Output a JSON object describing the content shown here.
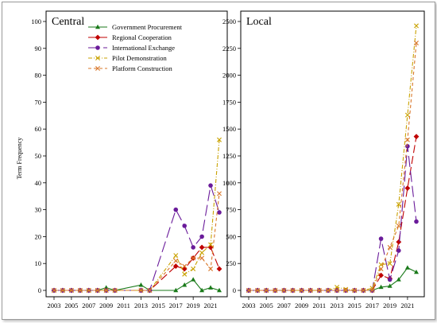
{
  "ylabel": "Term Frequency",
  "legend": [
    {
      "key": "gov",
      "name": "Government Procurement"
    },
    {
      "key": "reg",
      "name": "Regional Cooperation"
    },
    {
      "key": "int",
      "name": "International Exchange"
    },
    {
      "key": "pil",
      "name": "Pilot Demonstration"
    },
    {
      "key": "pla",
      "name": "Platform Construction"
    }
  ],
  "styles": {
    "gov": {
      "color": "#1a7a1a",
      "dash": "",
      "marker": "triangle"
    },
    "reg": {
      "color": "#c00000",
      "dash": "10,4",
      "marker": "diamond"
    },
    "int": {
      "color": "#6a1b9a",
      "dash": "14,5",
      "marker": "circle"
    },
    "pil": {
      "color": "#c9a200",
      "dash": "5,2,1,2",
      "marker": "cross"
    },
    "pla": {
      "color": "#d9772a",
      "dash": "4,3",
      "marker": "cross"
    }
  },
  "chart_data": [
    {
      "type": "line",
      "title": "Central",
      "ylabel": "Term Frequency",
      "xlim": [
        2003,
        2022
      ],
      "ylim": [
        0,
        100
      ],
      "yticks": [
        0,
        10,
        20,
        30,
        40,
        50,
        60,
        70,
        80,
        90,
        100
      ],
      "xticks": [
        2003,
        2005,
        2007,
        2009,
        2011,
        2013,
        2015,
        2017,
        2019,
        2021
      ],
      "legend_position": "top",
      "series": [
        {
          "key": "gov",
          "name": "Government Procurement",
          "x": [
            2003,
            2004,
            2005,
            2006,
            2007,
            2008,
            2009,
            2010,
            2013,
            2014,
            2017,
            2018,
            2019,
            2020,
            2021,
            2022
          ],
          "y": [
            0,
            0,
            0,
            0,
            0,
            0,
            1,
            0,
            2,
            0,
            0,
            2,
            4,
            0,
            1,
            0
          ]
        },
        {
          "key": "reg",
          "name": "Regional Cooperation",
          "x": [
            2003,
            2004,
            2005,
            2006,
            2007,
            2008,
            2009,
            2010,
            2013,
            2014,
            2017,
            2018,
            2019,
            2020,
            2021,
            2022
          ],
          "y": [
            0,
            0,
            0,
            0,
            0,
            0,
            0,
            0,
            0,
            0,
            9,
            8,
            12,
            16,
            16,
            8
          ]
        },
        {
          "key": "int",
          "name": "International Exchange",
          "x": [
            2003,
            2004,
            2005,
            2006,
            2007,
            2008,
            2009,
            2010,
            2013,
            2014,
            2017,
            2018,
            2019,
            2020,
            2021,
            2022
          ],
          "y": [
            0,
            0,
            0,
            0,
            0,
            0,
            0,
            0,
            0,
            0,
            30,
            24,
            16,
            20,
            39,
            29
          ]
        },
        {
          "key": "pil",
          "name": "Pilot Demonstration",
          "x": [
            2003,
            2004,
            2005,
            2006,
            2007,
            2008,
            2009,
            2010,
            2013,
            2014,
            2017,
            2018,
            2019,
            2020,
            2021,
            2022
          ],
          "y": [
            0,
            0,
            0,
            0,
            0,
            0,
            0,
            0,
            0,
            0,
            13,
            6,
            8,
            14,
            17,
            56
          ]
        },
        {
          "key": "pla",
          "name": "Platform Construction",
          "x": [
            2003,
            2004,
            2005,
            2006,
            2007,
            2008,
            2009,
            2010,
            2013,
            2014,
            2017,
            2018,
            2019,
            2020,
            2021,
            2022
          ],
          "y": [
            0,
            0,
            0,
            0,
            0,
            0,
            0,
            0,
            0,
            0,
            11,
            9,
            12,
            12,
            8,
            36
          ]
        }
      ]
    },
    {
      "type": "line",
      "title": "Local",
      "ylabel": "",
      "xlim": [
        2003,
        2022
      ],
      "ylim": [
        0,
        2500
      ],
      "yticks": [
        0,
        250,
        500,
        750,
        1000,
        1250,
        1500,
        1750,
        2000,
        2250,
        2500
      ],
      "xticks": [
        2003,
        2005,
        2007,
        2009,
        2011,
        2013,
        2015,
        2017,
        2019,
        2021
      ],
      "series": [
        {
          "key": "gov",
          "name": "Government Procurement",
          "x": [
            2003,
            2004,
            2005,
            2006,
            2007,
            2008,
            2009,
            2010,
            2011,
            2012,
            2013,
            2014,
            2015,
            2016,
            2017,
            2018,
            2019,
            2020,
            2021,
            2022
          ],
          "y": [
            0,
            0,
            0,
            0,
            0,
            0,
            0,
            0,
            0,
            0,
            0,
            0,
            0,
            0,
            0,
            30,
            40,
            100,
            210,
            170
          ]
        },
        {
          "key": "reg",
          "name": "Regional Cooperation",
          "x": [
            2003,
            2004,
            2005,
            2006,
            2007,
            2008,
            2009,
            2010,
            2011,
            2012,
            2013,
            2014,
            2015,
            2016,
            2017,
            2018,
            2019,
            2020,
            2021,
            2022
          ],
          "y": [
            0,
            0,
            0,
            0,
            0,
            0,
            0,
            0,
            0,
            0,
            0,
            0,
            0,
            0,
            0,
            140,
            110,
            450,
            950,
            1430
          ]
        },
        {
          "key": "int",
          "name": "International Exchange",
          "x": [
            2003,
            2004,
            2005,
            2006,
            2007,
            2008,
            2009,
            2010,
            2011,
            2012,
            2013,
            2014,
            2015,
            2016,
            2017,
            2018,
            2019,
            2020,
            2021,
            2022
          ],
          "y": [
            0,
            0,
            0,
            0,
            0,
            0,
            0,
            0,
            0,
            0,
            0,
            0,
            0,
            0,
            0,
            480,
            100,
            370,
            1340,
            640
          ]
        },
        {
          "key": "pil",
          "name": "Pilot Demonstration",
          "x": [
            2003,
            2004,
            2005,
            2006,
            2007,
            2008,
            2009,
            2010,
            2011,
            2012,
            2013,
            2014,
            2015,
            2016,
            2017,
            2018,
            2019,
            2020,
            2021,
            2022
          ],
          "y": [
            0,
            0,
            0,
            0,
            0,
            0,
            0,
            0,
            0,
            0,
            30,
            10,
            0,
            0,
            20,
            240,
            250,
            800,
            1630,
            2460
          ]
        },
        {
          "key": "pla",
          "name": "Platform Construction",
          "x": [
            2003,
            2004,
            2005,
            2006,
            2007,
            2008,
            2009,
            2010,
            2011,
            2012,
            2013,
            2014,
            2015,
            2016,
            2017,
            2018,
            2019,
            2020,
            2021,
            2022
          ],
          "y": [
            0,
            0,
            0,
            0,
            0,
            0,
            0,
            0,
            0,
            0,
            0,
            0,
            0,
            0,
            0,
            200,
            400,
            600,
            1400,
            2300
          ]
        }
      ]
    }
  ]
}
